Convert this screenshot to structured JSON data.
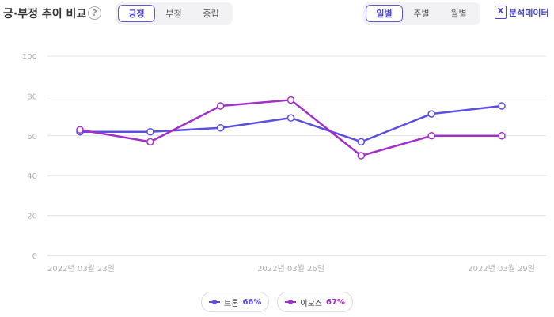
{
  "header": {
    "title": "긍·부정 추이 비교",
    "help_icon": "question-circle-icon",
    "sentiment_tabs": [
      "긍정",
      "부정",
      "중립"
    ],
    "sentiment_active": 0,
    "period_tabs": [
      "일별",
      "주별",
      "월별"
    ],
    "period_active": 0,
    "export_label": "분석데이터",
    "export_icon": "excel-icon",
    "accent_color": "#4a45c9"
  },
  "chart_data": {
    "type": "line",
    "x": [
      "2022-03-23",
      "2022-03-24",
      "2022-03-25",
      "2022-03-26",
      "2022-03-27",
      "2022-03-28",
      "2022-03-29"
    ],
    "x_tick_labels": [
      "2022년 03월 23일",
      "2022년 03월 26일",
      "2022년 03월 29일"
    ],
    "x_tick_index": [
      0,
      3,
      6
    ],
    "ylim": [
      0,
      100
    ],
    "yticks": [
      0,
      20,
      40,
      60,
      80,
      100
    ],
    "grid": true,
    "series": [
      {
        "name": "트론",
        "share": "66%",
        "color": "#5b4fe0",
        "values": [
          62,
          62,
          64,
          69,
          57,
          71,
          75
        ]
      },
      {
        "name": "이오스",
        "share": "67%",
        "color": "#a22fc8",
        "values": [
          63,
          57,
          75,
          78,
          50,
          60,
          60
        ]
      }
    ],
    "legend_position": "bottom-center"
  }
}
